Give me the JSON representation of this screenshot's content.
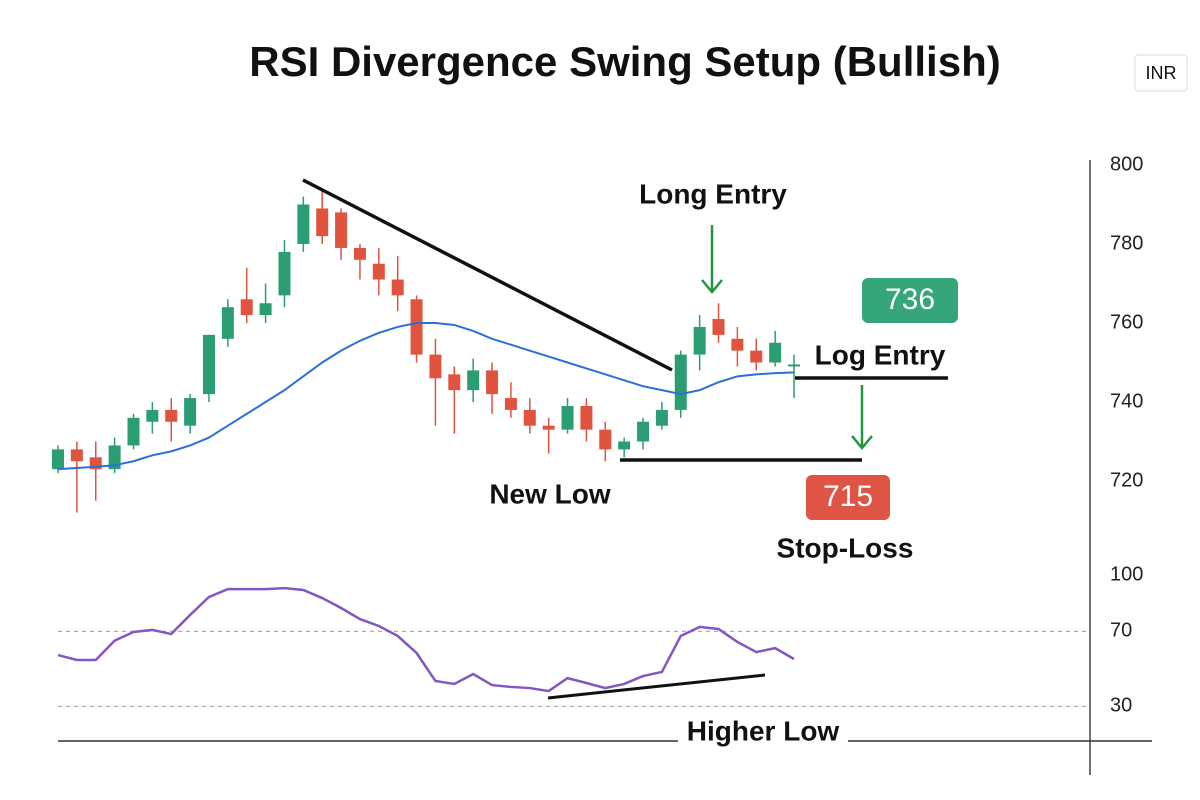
{
  "title": "RSI Divergence Swing Setup (Bullish)",
  "currency": "INR",
  "chart_data": [
    {
      "type": "candlestick",
      "open": [
        723,
        728,
        726,
        723,
        729,
        735,
        738,
        734,
        742,
        756,
        766,
        762,
        767,
        780,
        789,
        788,
        779,
        775,
        771,
        766,
        752,
        747,
        743,
        748,
        741,
        738,
        734,
        733,
        739,
        733,
        728,
        730,
        734,
        738,
        752,
        761,
        756,
        753,
        750,
        749
      ],
      "high": [
        729,
        730,
        730,
        731,
        737,
        740,
        741,
        742,
        757,
        766,
        774,
        770,
        781,
        792,
        794,
        789,
        780,
        779,
        777,
        767,
        756,
        749,
        751,
        750,
        745,
        741,
        736,
        741,
        741,
        735,
        731,
        736,
        740,
        753,
        762,
        765,
        759,
        756,
        758,
        752
      ],
      "low": [
        722,
        712,
        715,
        722,
        728,
        732,
        730,
        732,
        740,
        754,
        760,
        760,
        764,
        778,
        780,
        776,
        771,
        767,
        763,
        750,
        734,
        732,
        740,
        737,
        736,
        732,
        727,
        732,
        730,
        725,
        726,
        728,
        733,
        736,
        748,
        755,
        749,
        748,
        749,
        741
      ],
      "close": [
        728,
        725,
        723,
        729,
        736,
        738,
        735,
        741,
        757,
        764,
        762,
        765,
        778,
        790,
        782,
        779,
        776,
        771,
        767,
        752,
        746,
        743,
        748,
        742,
        738,
        734,
        733,
        739,
        733,
        728,
        730,
        735,
        738,
        752,
        759,
        757,
        753,
        750,
        755,
        749.5
      ],
      "up_color": "#2a9d72",
      "down_color": "#e0533f",
      "ma": {
        "color": "#2d6fd8",
        "values": [
          723,
          723.3,
          723.6,
          724,
          725,
          726.5,
          727.5,
          729,
          731,
          734,
          737,
          740,
          743,
          746.5,
          750,
          753,
          755.5,
          757.5,
          759,
          760,
          760,
          759.5,
          758,
          756,
          754.5,
          753,
          751.5,
          750,
          748.5,
          747,
          745.5,
          744,
          743,
          742,
          743,
          745,
          746.5,
          747,
          747.3,
          747.5
        ]
      },
      "ylim": [
        710,
        800
      ],
      "yticks": [
        800,
        780,
        760,
        740,
        720
      ],
      "annotations": {
        "long_entry": "Long Entry",
        "log_entry": "Log Entry",
        "entry_price": "736",
        "new_low": "New Low",
        "stop_price": "715",
        "stop_loss": "Stop-Loss"
      }
    },
    {
      "type": "line",
      "values": [
        57.3,
        54.7,
        54.7,
        65,
        69.6,
        70.7,
        68.5,
        78.7,
        88.3,
        92.5,
        92.5,
        92.5,
        93,
        92,
        87.7,
        82.4,
        76.5,
        72.8,
        67.5,
        58.4,
        43.5,
        41.9,
        47.2,
        41.3,
        40.3,
        39.7,
        38.1,
        45,
        42.4,
        39.7,
        41.9,
        46.1,
        48.3,
        67.5,
        72.3,
        71.2,
        64.3,
        58.9,
        61,
        55.2
      ],
      "color": "#8455c4",
      "ylim": [
        20,
        100
      ],
      "yticks": [
        100,
        70,
        30
      ],
      "annotations": {
        "higher_low": "Higher Low"
      }
    }
  ]
}
